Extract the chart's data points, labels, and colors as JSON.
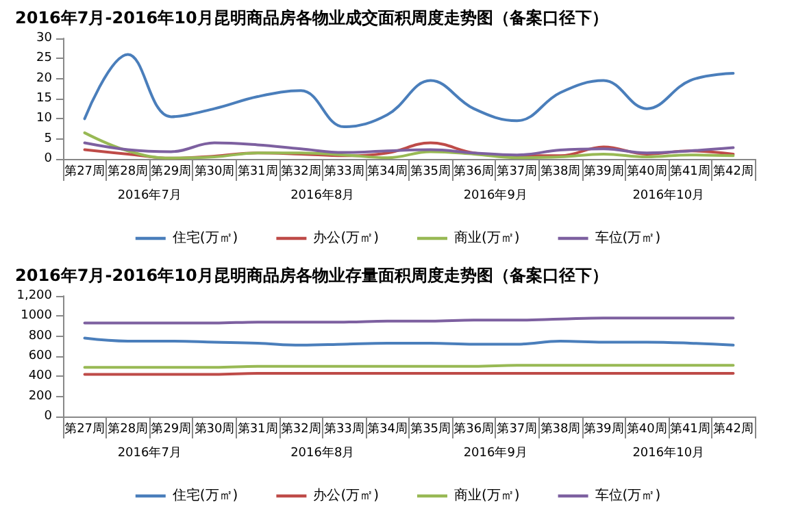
{
  "chart_data": [
    {
      "type": "line",
      "title": "2016年7月-2016年10月昆明商品房各物业成交面积周度走势图（备案口径下）",
      "categories": [
        "第27周",
        "第28周",
        "第29周",
        "第30周",
        "第31周",
        "第32周",
        "第33周",
        "第34周",
        "第35周",
        "第36周",
        "第37周",
        "第38周",
        "第39周",
        "第40周",
        "第41周",
        "第42周"
      ],
      "series": [
        {
          "name": "住宅(万㎡)",
          "color": "#4a7ebb",
          "values": [
            10,
            26,
            10.5,
            12.5,
            15.5,
            17,
            8,
            11,
            19.5,
            12.5,
            9.5,
            16.5,
            19.5,
            12.5,
            19.5,
            21.3
          ]
        },
        {
          "name": "办公(万㎡)",
          "color": "#be4b48",
          "values": [
            2.3,
            1.2,
            0.2,
            0.7,
            1.5,
            1.2,
            0.8,
            1.5,
            4,
            1.5,
            0.8,
            0.8,
            3,
            1.2,
            2,
            1.2
          ]
        },
        {
          "name": "商业(万㎡)",
          "color": "#98b954",
          "values": [
            6.5,
            2,
            0.2,
            0.5,
            1.5,
            1.5,
            1,
            0.3,
            1.8,
            1.2,
            0.3,
            0.5,
            1.2,
            0.5,
            1,
            0.8
          ]
        },
        {
          "name": "车位(万㎡)",
          "color": "#7d60a0",
          "values": [
            4,
            2.3,
            1.8,
            4,
            3.5,
            2.5,
            1.6,
            2,
            2.3,
            1.5,
            1,
            2.2,
            2.5,
            1.5,
            2,
            2.8
          ]
        }
      ],
      "ylim": [
        0,
        30
      ],
      "yticks": [
        0,
        5,
        10,
        15,
        20,
        25,
        30
      ],
      "grid": false,
      "legend": "bottom",
      "marker": "none",
      "line_style": "solid",
      "annotations": [
        "2016年7月",
        "2016年8月",
        "2016年9月",
        "2016年10月"
      ]
    },
    {
      "type": "line",
      "title": "2016年7月-2016年10月昆明商品房各物业存量面积周度走势图（备案口径下）",
      "categories": [
        "第27周",
        "第28周",
        "第29周",
        "第30周",
        "第31周",
        "第32周",
        "第33周",
        "第34周",
        "第35周",
        "第36周",
        "第37周",
        "第38周",
        "第39周",
        "第40周",
        "第41周",
        "第42周"
      ],
      "series": [
        {
          "name": "住宅(万㎡)",
          "color": "#4a7ebb",
          "values": [
            780,
            750,
            750,
            740,
            730,
            710,
            720,
            730,
            730,
            720,
            720,
            750,
            740,
            740,
            730,
            710
          ]
        },
        {
          "name": "办公(万㎡)",
          "color": "#be4b48",
          "values": [
            420,
            420,
            420,
            420,
            430,
            430,
            430,
            430,
            430,
            430,
            430,
            430,
            430,
            430,
            430,
            430
          ]
        },
        {
          "name": "商业(万㎡)",
          "color": "#98b954",
          "values": [
            490,
            490,
            490,
            490,
            500,
            500,
            500,
            500,
            500,
            500,
            510,
            510,
            510,
            510,
            510,
            510
          ]
        },
        {
          "name": "车位(万㎡)",
          "color": "#7d60a0",
          "values": [
            930,
            930,
            930,
            930,
            940,
            940,
            940,
            950,
            950,
            960,
            960,
            970,
            980,
            980,
            980,
            980
          ]
        }
      ],
      "ylim": [
        0,
        1200
      ],
      "yticks": [
        0,
        200,
        400,
        600,
        800,
        1000,
        {
          "value": 1200,
          "label": "1,200"
        }
      ],
      "grid": false,
      "legend": "bottom",
      "marker": "none",
      "line_style": "solid",
      "annotations": [
        "2016年7月",
        "2016年8月",
        "2016年9月",
        "2016年10月"
      ]
    }
  ]
}
